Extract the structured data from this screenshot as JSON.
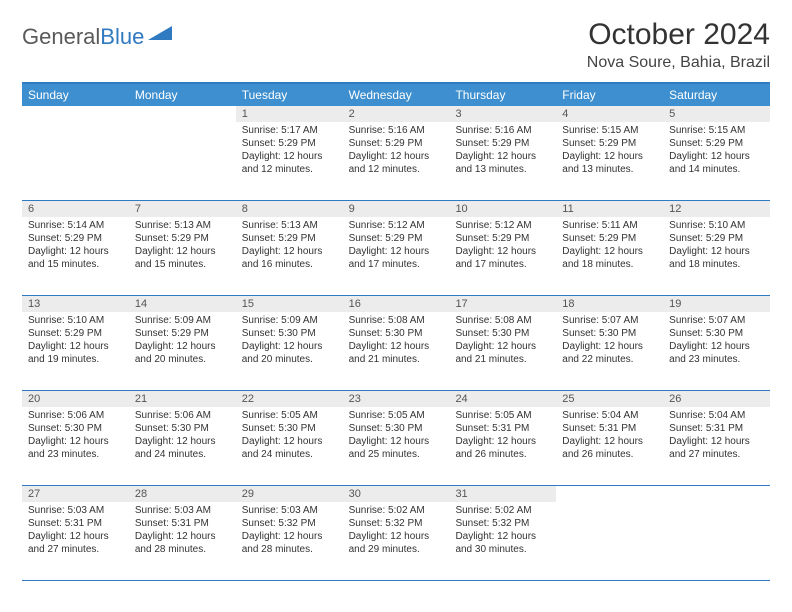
{
  "logo": {
    "part1": "General",
    "part2": "Blue"
  },
  "title": "October 2024",
  "location": "Nova Soure, Bahia, Brazil",
  "colors": {
    "header_bg": "#3d8fcf",
    "border": "#2f7ac0",
    "daynum_bg": "#ececec",
    "text": "#333333"
  },
  "day_headers": [
    "Sunday",
    "Monday",
    "Tuesday",
    "Wednesday",
    "Thursday",
    "Friday",
    "Saturday"
  ],
  "weeks": [
    [
      {
        "n": "",
        "empty": true
      },
      {
        "n": "",
        "empty": true
      },
      {
        "n": "1",
        "sr": "Sunrise: 5:17 AM",
        "ss": "Sunset: 5:29 PM",
        "dl": "Daylight: 12 hours and 12 minutes."
      },
      {
        "n": "2",
        "sr": "Sunrise: 5:16 AM",
        "ss": "Sunset: 5:29 PM",
        "dl": "Daylight: 12 hours and 12 minutes."
      },
      {
        "n": "3",
        "sr": "Sunrise: 5:16 AM",
        "ss": "Sunset: 5:29 PM",
        "dl": "Daylight: 12 hours and 13 minutes."
      },
      {
        "n": "4",
        "sr": "Sunrise: 5:15 AM",
        "ss": "Sunset: 5:29 PM",
        "dl": "Daylight: 12 hours and 13 minutes."
      },
      {
        "n": "5",
        "sr": "Sunrise: 5:15 AM",
        "ss": "Sunset: 5:29 PM",
        "dl": "Daylight: 12 hours and 14 minutes."
      }
    ],
    [
      {
        "n": "6",
        "sr": "Sunrise: 5:14 AM",
        "ss": "Sunset: 5:29 PM",
        "dl": "Daylight: 12 hours and 15 minutes."
      },
      {
        "n": "7",
        "sr": "Sunrise: 5:13 AM",
        "ss": "Sunset: 5:29 PM",
        "dl": "Daylight: 12 hours and 15 minutes."
      },
      {
        "n": "8",
        "sr": "Sunrise: 5:13 AM",
        "ss": "Sunset: 5:29 PM",
        "dl": "Daylight: 12 hours and 16 minutes."
      },
      {
        "n": "9",
        "sr": "Sunrise: 5:12 AM",
        "ss": "Sunset: 5:29 PM",
        "dl": "Daylight: 12 hours and 17 minutes."
      },
      {
        "n": "10",
        "sr": "Sunrise: 5:12 AM",
        "ss": "Sunset: 5:29 PM",
        "dl": "Daylight: 12 hours and 17 minutes."
      },
      {
        "n": "11",
        "sr": "Sunrise: 5:11 AM",
        "ss": "Sunset: 5:29 PM",
        "dl": "Daylight: 12 hours and 18 minutes."
      },
      {
        "n": "12",
        "sr": "Sunrise: 5:10 AM",
        "ss": "Sunset: 5:29 PM",
        "dl": "Daylight: 12 hours and 18 minutes."
      }
    ],
    [
      {
        "n": "13",
        "sr": "Sunrise: 5:10 AM",
        "ss": "Sunset: 5:29 PM",
        "dl": "Daylight: 12 hours and 19 minutes."
      },
      {
        "n": "14",
        "sr": "Sunrise: 5:09 AM",
        "ss": "Sunset: 5:29 PM",
        "dl": "Daylight: 12 hours and 20 minutes."
      },
      {
        "n": "15",
        "sr": "Sunrise: 5:09 AM",
        "ss": "Sunset: 5:30 PM",
        "dl": "Daylight: 12 hours and 20 minutes."
      },
      {
        "n": "16",
        "sr": "Sunrise: 5:08 AM",
        "ss": "Sunset: 5:30 PM",
        "dl": "Daylight: 12 hours and 21 minutes."
      },
      {
        "n": "17",
        "sr": "Sunrise: 5:08 AM",
        "ss": "Sunset: 5:30 PM",
        "dl": "Daylight: 12 hours and 21 minutes."
      },
      {
        "n": "18",
        "sr": "Sunrise: 5:07 AM",
        "ss": "Sunset: 5:30 PM",
        "dl": "Daylight: 12 hours and 22 minutes."
      },
      {
        "n": "19",
        "sr": "Sunrise: 5:07 AM",
        "ss": "Sunset: 5:30 PM",
        "dl": "Daylight: 12 hours and 23 minutes."
      }
    ],
    [
      {
        "n": "20",
        "sr": "Sunrise: 5:06 AM",
        "ss": "Sunset: 5:30 PM",
        "dl": "Daylight: 12 hours and 23 minutes."
      },
      {
        "n": "21",
        "sr": "Sunrise: 5:06 AM",
        "ss": "Sunset: 5:30 PM",
        "dl": "Daylight: 12 hours and 24 minutes."
      },
      {
        "n": "22",
        "sr": "Sunrise: 5:05 AM",
        "ss": "Sunset: 5:30 PM",
        "dl": "Daylight: 12 hours and 24 minutes."
      },
      {
        "n": "23",
        "sr": "Sunrise: 5:05 AM",
        "ss": "Sunset: 5:30 PM",
        "dl": "Daylight: 12 hours and 25 minutes."
      },
      {
        "n": "24",
        "sr": "Sunrise: 5:05 AM",
        "ss": "Sunset: 5:31 PM",
        "dl": "Daylight: 12 hours and 26 minutes."
      },
      {
        "n": "25",
        "sr": "Sunrise: 5:04 AM",
        "ss": "Sunset: 5:31 PM",
        "dl": "Daylight: 12 hours and 26 minutes."
      },
      {
        "n": "26",
        "sr": "Sunrise: 5:04 AM",
        "ss": "Sunset: 5:31 PM",
        "dl": "Daylight: 12 hours and 27 minutes."
      }
    ],
    [
      {
        "n": "27",
        "sr": "Sunrise: 5:03 AM",
        "ss": "Sunset: 5:31 PM",
        "dl": "Daylight: 12 hours and 27 minutes."
      },
      {
        "n": "28",
        "sr": "Sunrise: 5:03 AM",
        "ss": "Sunset: 5:31 PM",
        "dl": "Daylight: 12 hours and 28 minutes."
      },
      {
        "n": "29",
        "sr": "Sunrise: 5:03 AM",
        "ss": "Sunset: 5:32 PM",
        "dl": "Daylight: 12 hours and 28 minutes."
      },
      {
        "n": "30",
        "sr": "Sunrise: 5:02 AM",
        "ss": "Sunset: 5:32 PM",
        "dl": "Daylight: 12 hours and 29 minutes."
      },
      {
        "n": "31",
        "sr": "Sunrise: 5:02 AM",
        "ss": "Sunset: 5:32 PM",
        "dl": "Daylight: 12 hours and 30 minutes."
      },
      {
        "n": "",
        "empty": true
      },
      {
        "n": "",
        "empty": true
      }
    ]
  ]
}
